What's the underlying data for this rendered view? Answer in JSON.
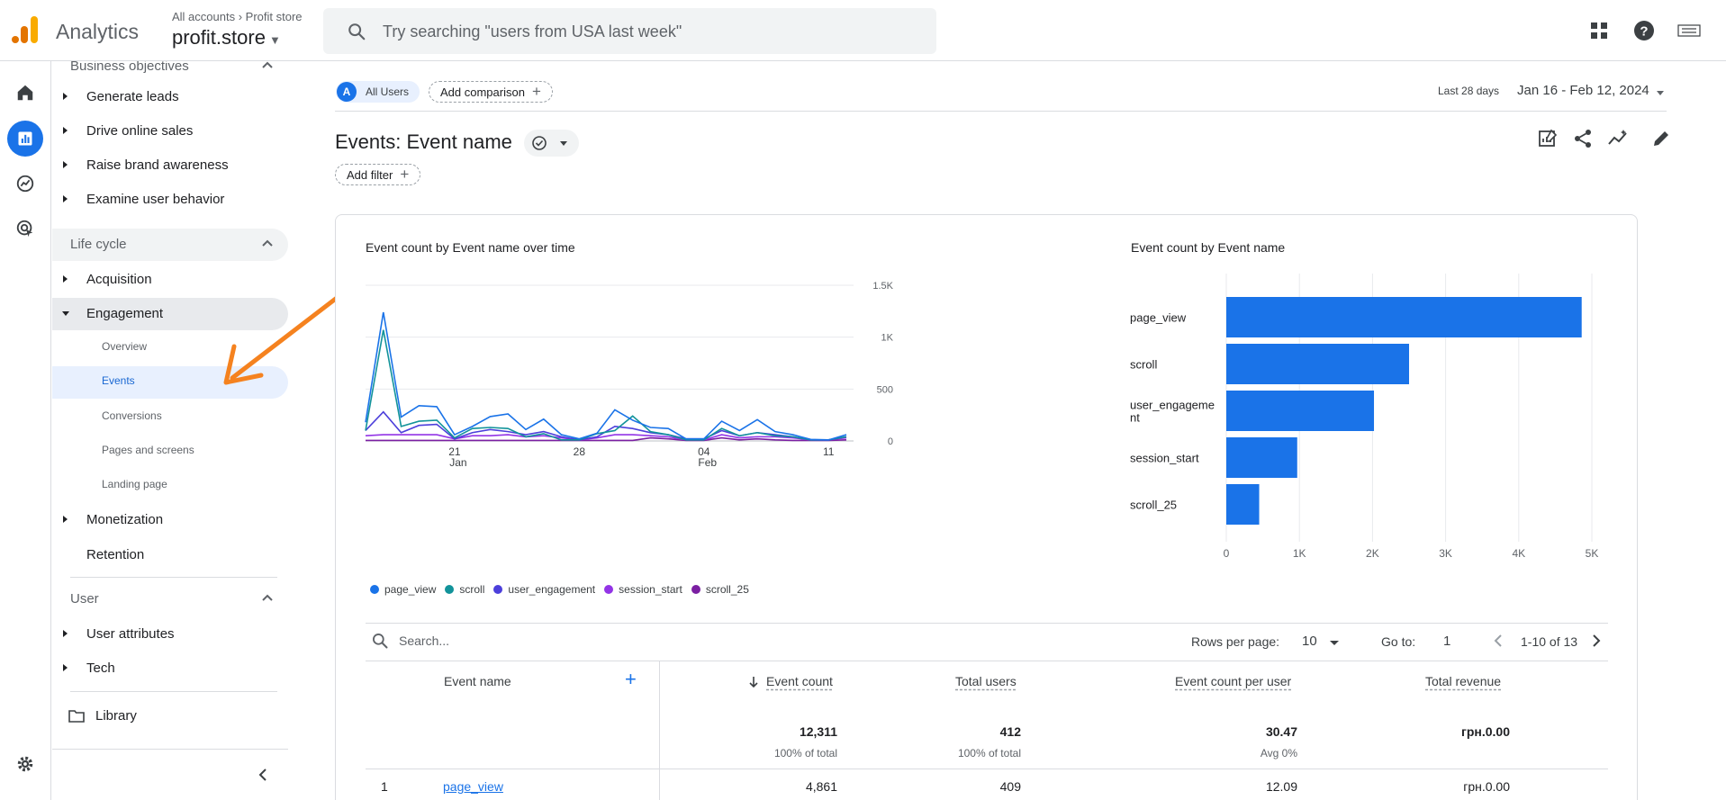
{
  "app": {
    "product": "Analytics",
    "breadcrumb_account": "All accounts",
    "breadcrumb_property": "Profit store",
    "property_name": "profit.store"
  },
  "search": {
    "placeholder": "Try searching \"users from USA last week\""
  },
  "sidebar": {
    "partial_top": "Business objectives",
    "objectives": [
      "Generate leads",
      "Drive online sales",
      "Raise brand awareness",
      "Examine user behavior"
    ],
    "lifecycle_title": "Life cycle",
    "acquisition": "Acquisition",
    "engagement": "Engagement",
    "engagement_children": [
      "Overview",
      "Events",
      "Conversions",
      "Pages and screens",
      "Landing page"
    ],
    "monetization": "Monetization",
    "retention": "Retention",
    "user_title": "User",
    "user_attributes": "User attributes",
    "tech": "Tech",
    "library": "Library"
  },
  "filters": {
    "segment_badge": "A",
    "segment": "All Users",
    "add_comparison": "Add comparison",
    "add_filter": "Add filter",
    "date_label": "Last 28 days",
    "date_range": "Jan 16 - Feb 12, 2024"
  },
  "report": {
    "title": "Events: Event name"
  },
  "line_chart": {
    "title": "Event count by Event name over time",
    "y_ticks": [
      "1.5K",
      "1K",
      "500",
      "0"
    ],
    "x_ticks": [
      {
        "day": "21",
        "month": "Jan"
      },
      {
        "day": "28",
        "month": ""
      },
      {
        "day": "04",
        "month": "Feb"
      },
      {
        "day": "11",
        "month": ""
      }
    ]
  },
  "bar_chart": {
    "title": "Event count by Event name",
    "labels": [
      "page_view",
      "scroll",
      "user_engageme\nnt",
      "session_start",
      "scroll_25"
    ],
    "x_ticks": [
      "0",
      "1K",
      "2K",
      "3K",
      "4K",
      "5K"
    ]
  },
  "chart_data": [
    {
      "type": "line",
      "title": "Event count by Event name over time",
      "x": [
        "Jan 16",
        "Jan 17",
        "Jan 18",
        "Jan 19",
        "Jan 20",
        "Jan 21",
        "Jan 22",
        "Jan 23",
        "Jan 24",
        "Jan 25",
        "Jan 26",
        "Jan 27",
        "Jan 28",
        "Jan 29",
        "Jan 30",
        "Jan 31",
        "Feb 01",
        "Feb 02",
        "Feb 03",
        "Feb 04",
        "Feb 05",
        "Feb 06",
        "Feb 07",
        "Feb 08",
        "Feb 09",
        "Feb 10",
        "Feb 11",
        "Feb 12"
      ],
      "ylim": [
        0,
        1500
      ],
      "series": [
        {
          "name": "page_view",
          "color": "#1a73e8",
          "values": [
            180,
            1240,
            230,
            340,
            330,
            60,
            140,
            235,
            260,
            110,
            210,
            60,
            20,
            75,
            300,
            200,
            130,
            120,
            20,
            20,
            190,
            100,
            205,
            90,
            60,
            15,
            10,
            60
          ]
        },
        {
          "name": "scroll",
          "color": "#12939a",
          "values": [
            100,
            1070,
            140,
            190,
            200,
            30,
            120,
            130,
            120,
            40,
            70,
            10,
            10,
            70,
            100,
            240,
            90,
            60,
            10,
            10,
            120,
            50,
            80,
            50,
            40,
            10,
            10,
            40
          ]
        },
        {
          "name": "user_engagement",
          "color": "#4c3fdb",
          "values": [
            100,
            280,
            80,
            150,
            160,
            20,
            80,
            110,
            90,
            60,
            90,
            40,
            10,
            40,
            140,
            120,
            80,
            60,
            20,
            20,
            100,
            50,
            80,
            60,
            40,
            10,
            10,
            40
          ]
        },
        {
          "name": "session_start",
          "color": "#9334e6",
          "values": [
            50,
            60,
            60,
            60,
            60,
            20,
            50,
            50,
            60,
            40,
            50,
            30,
            10,
            30,
            60,
            60,
            50,
            40,
            10,
            10,
            60,
            30,
            40,
            40,
            30,
            10,
            10,
            30
          ]
        },
        {
          "name": "scroll_25",
          "color": "#7b1fa2",
          "values": [
            5,
            5,
            5,
            5,
            5,
            5,
            5,
            5,
            5,
            5,
            5,
            5,
            5,
            5,
            5,
            5,
            30,
            20,
            5,
            5,
            30,
            10,
            20,
            10,
            5,
            5,
            5,
            10
          ]
        }
      ]
    },
    {
      "type": "bar",
      "title": "Event count by Event name",
      "categories": [
        "page_view",
        "scroll",
        "user_engagement",
        "session_start",
        "scroll_25"
      ],
      "values": [
        4861,
        2500,
        2020,
        970,
        450
      ],
      "xlim": [
        0,
        5000
      ],
      "color": "#1a73e8"
    }
  ],
  "table": {
    "search_placeholder": "Search...",
    "rows_per_page_label": "Rows per page:",
    "rows_per_page": "10",
    "goto_label": "Go to:",
    "goto_value": "1",
    "range": "1-10 of 13",
    "columns": {
      "event_name": "Event name",
      "event_count": "Event count",
      "total_users": "Total users",
      "count_per_user": "Event count per user",
      "total_revenue": "Total revenue"
    },
    "totals": {
      "event_count": "12,311",
      "event_count_sub": "100% of total",
      "total_users": "412",
      "total_users_sub": "100% of total",
      "count_per_user": "30.47",
      "count_per_user_sub": "Avg 0%",
      "total_revenue": "грн.0.00"
    },
    "rows": [
      {
        "index": "1",
        "event_name": "page_view",
        "event_count": "4,861",
        "total_users": "409",
        "count_per_user": "12.09",
        "total_revenue": "грн.0.00"
      }
    ]
  }
}
